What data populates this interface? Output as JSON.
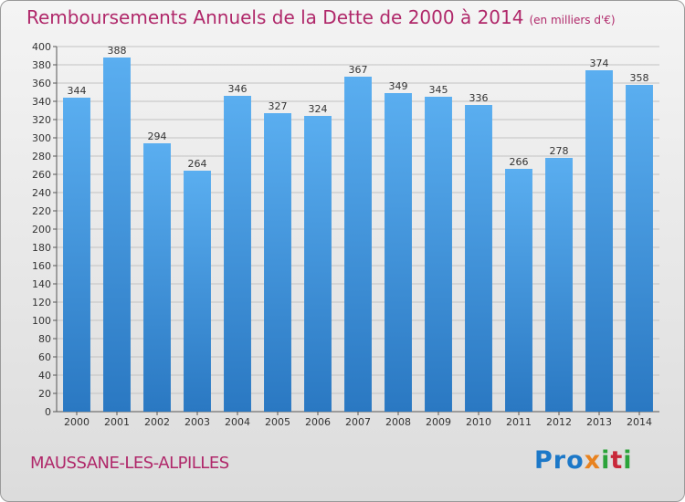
{
  "header": {
    "title": "Remboursements Annuels de la Dette de 2000 à 2014",
    "unit": "(en milliers d'€)"
  },
  "footer": {
    "commune": "MAUSSANE-LES-ALPILLES",
    "logo": {
      "p1": "Pro",
      "p2": "x",
      "p3": "i",
      "p4": "t",
      "p5": "i"
    }
  },
  "colors": {
    "bar": "#3a8fd9",
    "title": "#b0286a",
    "grid": "#bdbdbd"
  },
  "chart_data": {
    "type": "bar",
    "title": "Remboursements Annuels de la Dette de 2000 à 2014",
    "xlabel": "",
    "ylabel": "",
    "ylim": [
      0,
      400
    ],
    "ytick_step": 20,
    "grid": true,
    "categories": [
      "2000",
      "2001",
      "2002",
      "2003",
      "2004",
      "2005",
      "2006",
      "2007",
      "2008",
      "2009",
      "2010",
      "2011",
      "2012",
      "2013",
      "2014"
    ],
    "values": [
      344,
      388,
      294,
      264,
      346,
      327,
      324,
      367,
      349,
      345,
      336,
      266,
      278,
      374,
      358
    ]
  }
}
